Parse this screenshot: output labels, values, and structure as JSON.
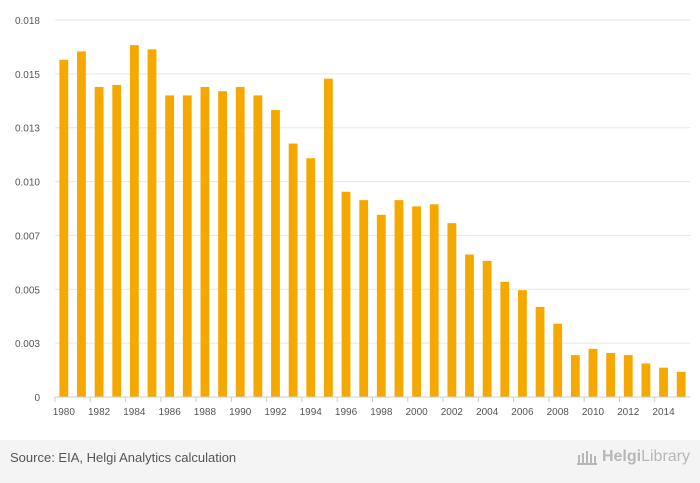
{
  "chart_data": {
    "type": "bar",
    "title": "",
    "xlabel": "",
    "ylabel": "",
    "ylim": [
      0,
      0.018
    ],
    "y_ticks": [
      "0",
      "0.003",
      "0.005",
      "0.007",
      "0.010",
      "0.013",
      "0.015",
      "0.018"
    ],
    "x_tick_labels": [
      "1980",
      "1982",
      "1984",
      "1986",
      "1988",
      "1990",
      "1992",
      "1994",
      "1996",
      "1998",
      "2000",
      "2002",
      "2004",
      "2006",
      "2008",
      "2010",
      "2012",
      "2014"
    ],
    "categories": [
      "1980",
      "1981",
      "1982",
      "1983",
      "1984",
      "1985",
      "1986",
      "1987",
      "1988",
      "1989",
      "1990",
      "1991",
      "1992",
      "1993",
      "1994",
      "1995",
      "1996",
      "1997",
      "1998",
      "1999",
      "2000",
      "2001",
      "2002",
      "2003",
      "2004",
      "2005",
      "2006",
      "2007",
      "2008",
      "2009",
      "2010",
      "2011",
      "2012",
      "2013",
      "2014",
      "2015"
    ],
    "values": [
      0.0161,
      0.0165,
      0.0148,
      0.0149,
      0.0168,
      0.0166,
      0.0144,
      0.0144,
      0.0148,
      0.0146,
      0.0148,
      0.0144,
      0.0137,
      0.0121,
      0.0114,
      0.0152,
      0.0098,
      0.0094,
      0.0087,
      0.0094,
      0.0091,
      0.0092,
      0.0083,
      0.0068,
      0.0065,
      0.0055,
      0.0051,
      0.0043,
      0.0035,
      0.002,
      0.0023,
      0.0021,
      0.002,
      0.0016,
      0.0014,
      0.0012
    ],
    "bar_color": "#f5a800",
    "grid": true
  },
  "footer": {
    "source": "Source: EIA, Helgi Analytics calculation",
    "brand": "HelgiLibrary",
    "brand_bold": "Helgi",
    "brand_rest": "Library",
    "brand_color": "#b7b7b7"
  }
}
